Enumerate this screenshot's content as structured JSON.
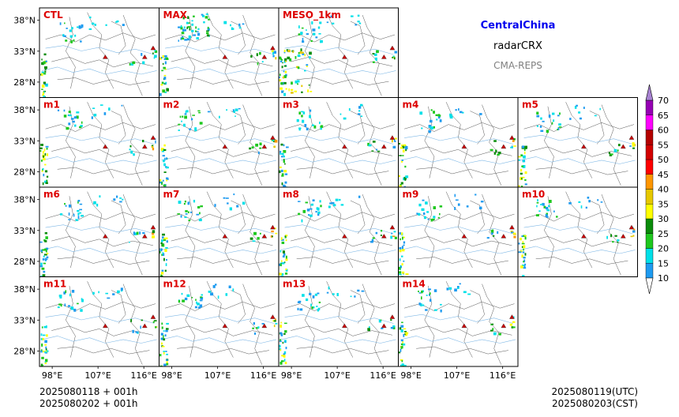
{
  "header": {
    "region": "CentralChina",
    "product": "radarCRX",
    "system": "CMA-REPS",
    "colors": {
      "region": "#0000ee",
      "product": "#000000",
      "system": "#808080"
    }
  },
  "chart_data": {
    "type": "heatmap",
    "panels": [
      "CTL",
      "MAX",
      "MESO_1km",
      "m1",
      "m2",
      "m3",
      "m4",
      "m5",
      "m6",
      "m7",
      "m8",
      "m9",
      "m10",
      "m11",
      "m12",
      "m13",
      "m14"
    ],
    "panel_label_color": "#dd0000",
    "lat_ticks": [
      "38°N",
      "33°N",
      "28°N"
    ],
    "lat_values": [
      38,
      33,
      28
    ],
    "lon_ticks": [
      "98°E",
      "107°E",
      "116°E"
    ],
    "lon_values": [
      98,
      107,
      116
    ],
    "extent": {
      "lon": [
        95.5,
        119
      ],
      "lat": [
        25.5,
        40
      ]
    },
    "colorbar": {
      "levels": [
        10,
        15,
        20,
        25,
        30,
        35,
        40,
        45,
        50,
        55,
        60,
        65,
        70
      ],
      "colors": [
        "#1e9bf0",
        "#00e0e8",
        "#1ec81e",
        "#0a8c0a",
        "#ffff00",
        "#e6c800",
        "#ff9600",
        "#ff0000",
        "#d20000",
        "#b40000",
        "#ff00ff",
        "#9600b4",
        "#a882d2"
      ],
      "extend": "both",
      "unit": ""
    }
  },
  "footer": {
    "init_line_1": "2025080118  +  001h",
    "init_line_2": "2025080202  +  001h",
    "valid_utc": "2025080119(UTC)",
    "valid_cst": "2025080203(CST)"
  }
}
